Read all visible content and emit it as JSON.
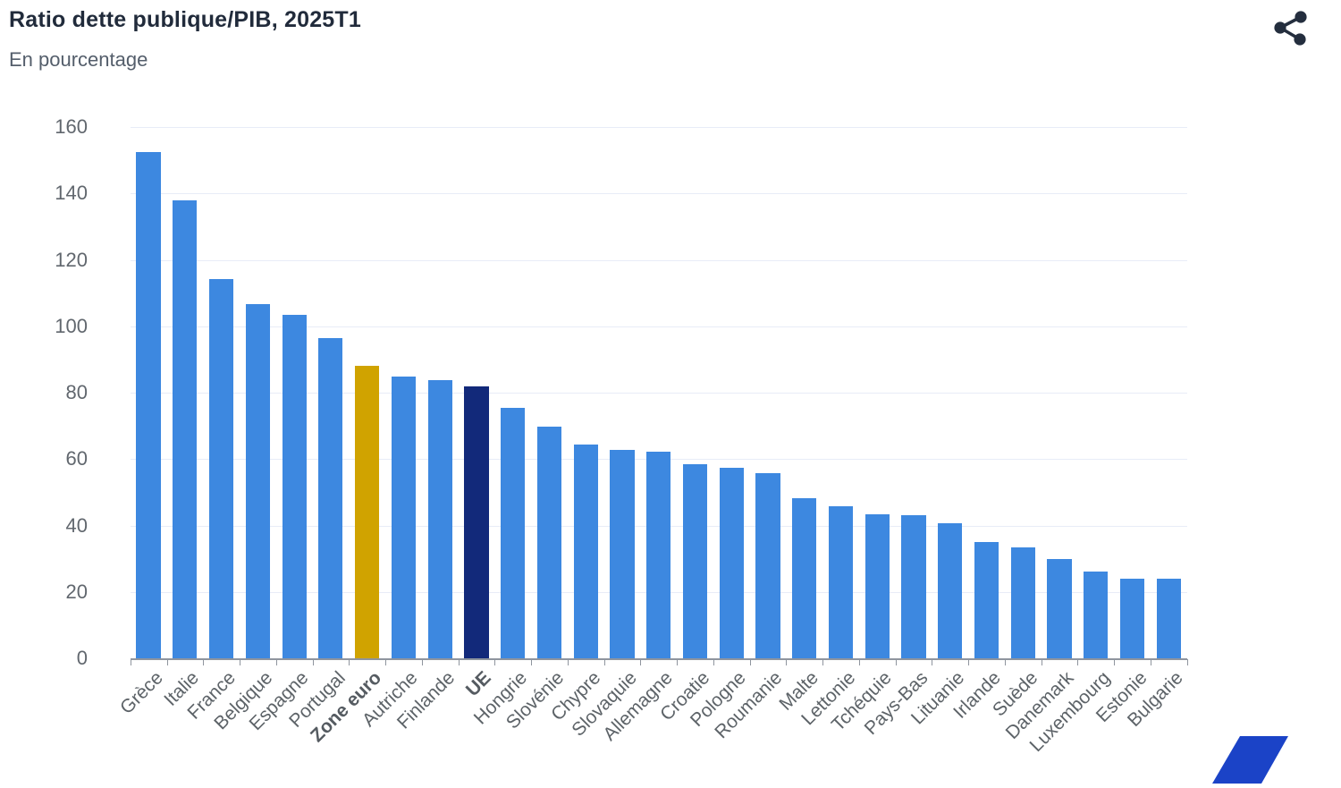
{
  "header": {
    "title": "Ratio dette publique/PIB, 2025T1",
    "subtitle": "En pourcentage"
  },
  "toolbar": {
    "share_icon": "share-icon"
  },
  "colors": {
    "bar_default": "#3d88e0",
    "bar_zone_euro": "#d0a300",
    "bar_ue": "#12297a",
    "title_text": "#212b3b",
    "subtitle_text": "#545e6b",
    "axis_text": "#61676e",
    "gridline": "#e8ecf7",
    "axis_line": "#8f959e",
    "share_icon": "#242e3e",
    "logo_blue": "#1b43c7"
  },
  "chart_data": {
    "type": "bar",
    "title": "Ratio dette publique/PIB, 2025T1",
    "subtitle": "En pourcentage",
    "unit": "%",
    "categories": [
      "Grèce",
      "Italie",
      "France",
      "Belgique",
      "Espagne",
      "Portugal",
      "Zone euro",
      "Autriche",
      "Finlande",
      "UE",
      "Hongrie",
      "Slovénie",
      "Chypre",
      "Slovaquie",
      "Allemagne",
      "Croatie",
      "Pologne",
      "Roumanie",
      "Malte",
      "Lettonie",
      "Tchéquie",
      "Pays-Bas",
      "Lituanie",
      "Irlande",
      "Suède",
      "Danemark",
      "Luxembourg",
      "Estonie",
      "Bulgarie"
    ],
    "values": [
      152.5,
      137.9,
      114.1,
      106.8,
      103.5,
      96.5,
      88.0,
      84.9,
      83.7,
      81.8,
      75.3,
      69.9,
      64.3,
      62.7,
      62.3,
      58.5,
      57.4,
      55.8,
      48.3,
      45.7,
      43.4,
      43.2,
      40.6,
      34.9,
      33.5,
      29.9,
      26.1,
      24.1,
      23.9
    ],
    "bold_categories": [
      "Zone euro",
      "UE"
    ],
    "highlight_colors": {
      "Zone euro": "#d0a300",
      "UE": "#12297a"
    },
    "xlabel": "",
    "ylabel": "",
    "ylim": [
      0,
      160
    ],
    "yticks": [
      0,
      20,
      40,
      60,
      80,
      100,
      120,
      140,
      160
    ],
    "grid": true,
    "legend": "none",
    "label_rotation_deg": -45
  }
}
